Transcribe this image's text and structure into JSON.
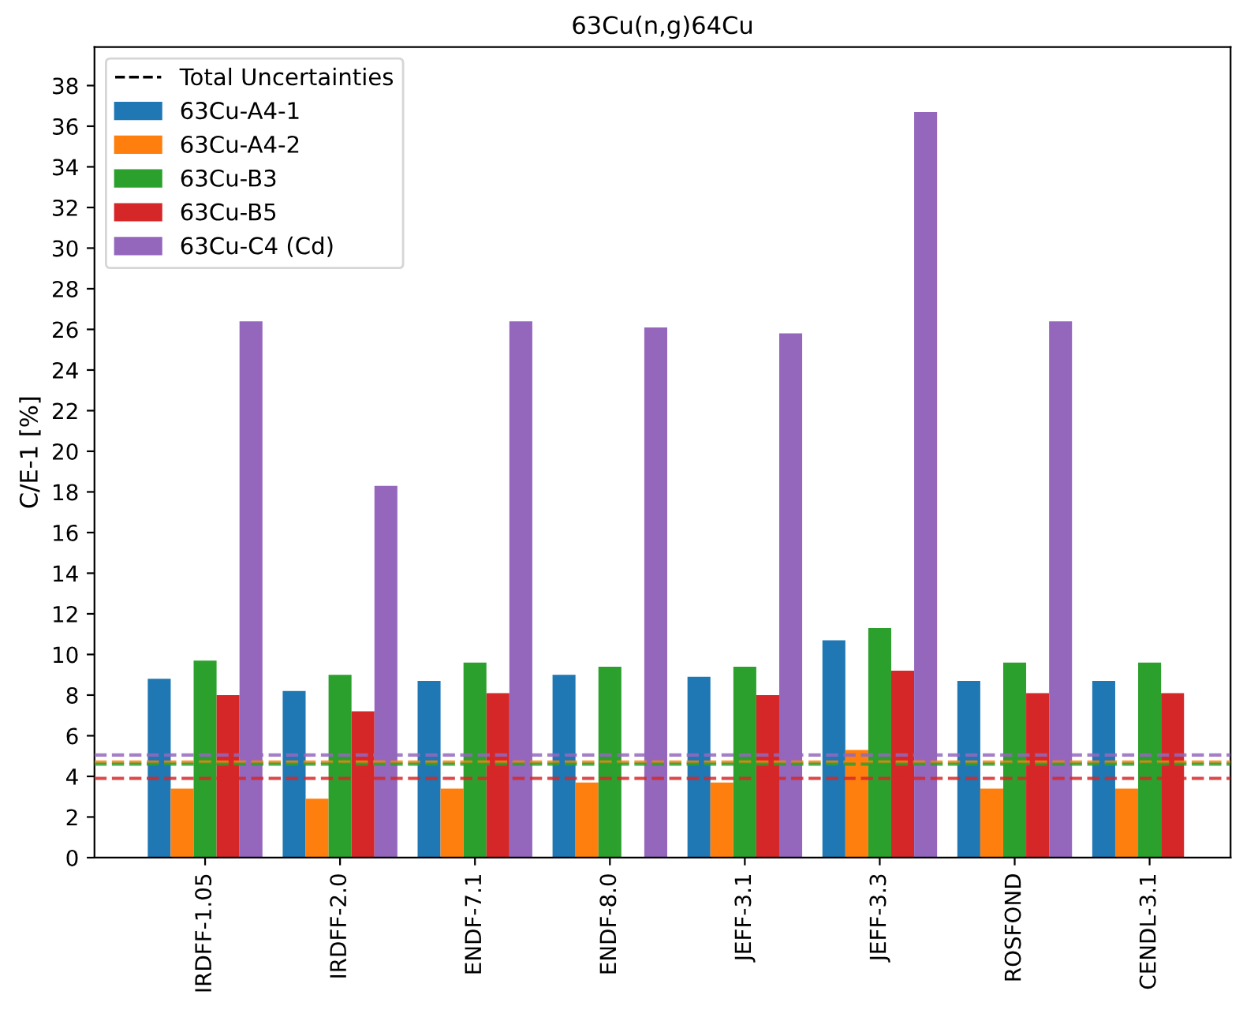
{
  "chart_data": {
    "type": "bar",
    "title": "63Cu(n,g)64Cu",
    "ylabel": "C/E-1 [%]",
    "categories": [
      "IRDFF-1.05",
      "IRDFF-2.0",
      "ENDF-7.1",
      "ENDF-8.0",
      "JEFF-3.1",
      "JEFF-3.3",
      "ROSFOND",
      "CENDL-3.1"
    ],
    "series": [
      {
        "name": "63Cu-A4-1",
        "color": "#1f77b4",
        "values": [
          8.8,
          8.2,
          8.7,
          9.0,
          8.9,
          10.7,
          8.7,
          8.7
        ]
      },
      {
        "name": "63Cu-A4-2",
        "color": "#ff7f0e",
        "values": [
          3.4,
          2.9,
          3.4,
          3.7,
          3.7,
          5.3,
          3.4,
          3.4
        ]
      },
      {
        "name": "63Cu-B3",
        "color": "#2ca02c",
        "values": [
          9.7,
          9.0,
          9.6,
          9.4,
          9.4,
          11.3,
          9.6,
          9.6
        ]
      },
      {
        "name": "63Cu-B5",
        "color": "#d62728",
        "values": [
          8.0,
          7.2,
          8.1,
          null,
          8.0,
          9.2,
          8.1,
          8.1
        ]
      },
      {
        "name": "63Cu-C4 (Cd)",
        "color": "#9467bd",
        "values": [
          26.4,
          18.3,
          26.4,
          26.1,
          25.8,
          36.7,
          26.4,
          null
        ]
      }
    ],
    "ref_lines": [
      {
        "axis": "y",
        "value": 4.7,
        "color": "#ff7f0e",
        "line_style": "dashed"
      },
      {
        "axis": "y",
        "value": 4.6,
        "color": "#2ca02c",
        "line_style": "dashed"
      },
      {
        "axis": "y",
        "value": 3.9,
        "color": "#d62728",
        "line_style": "dashed"
      },
      {
        "axis": "y",
        "value": 5.05,
        "color": "#9467bd",
        "line_style": "dashed"
      }
    ],
    "annotations": [
      "Total Uncertainties"
    ],
    "ylim": [
      0,
      39.9
    ],
    "yticks": [
      0,
      2,
      4,
      6,
      8,
      10,
      12,
      14,
      16,
      18,
      20,
      22,
      24,
      26,
      28,
      30,
      32,
      34,
      36,
      38
    ],
    "grid": false,
    "legend": "top left"
  }
}
